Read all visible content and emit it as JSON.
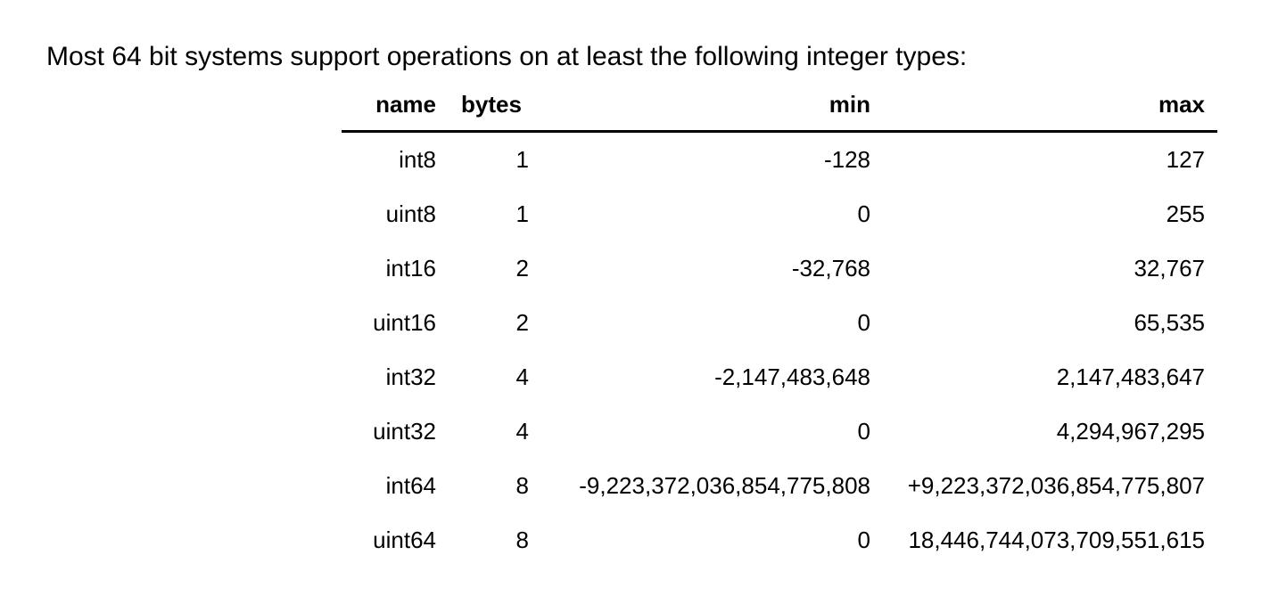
{
  "intro": "Most 64 bit systems support operations on at least the following integer types:",
  "table": {
    "headers": {
      "name": "name",
      "bytes": "bytes",
      "min": "min",
      "max": "max"
    },
    "rows": [
      {
        "name": "int8",
        "bytes": "1",
        "min": "-128",
        "max": "127"
      },
      {
        "name": "uint8",
        "bytes": "1",
        "min": "0",
        "max": "255"
      },
      {
        "name": "int16",
        "bytes": "2",
        "min": "-32,768",
        "max": "32,767"
      },
      {
        "name": "uint16",
        "bytes": "2",
        "min": "0",
        "max": "65,535"
      },
      {
        "name": "int32",
        "bytes": "4",
        "min": "-2,147,483,648",
        "max": "2,147,483,647"
      },
      {
        "name": "uint32",
        "bytes": "4",
        "min": "0",
        "max": "4,294,967,295"
      },
      {
        "name": "int64",
        "bytes": "8",
        "min": "-9,223,372,036,854,775,808",
        "max": "+9,223,372,036,854,775,807"
      },
      {
        "name": "uint64",
        "bytes": "8",
        "min": "0",
        "max": "18,446,744,073,709,551,615"
      }
    ]
  }
}
